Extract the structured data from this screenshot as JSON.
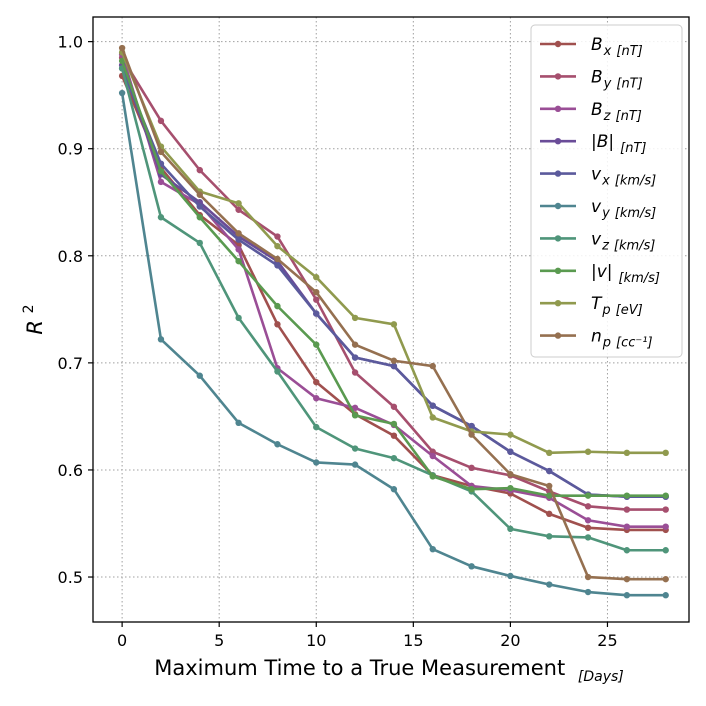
{
  "chart_data": {
    "type": "line",
    "title": "",
    "xlabel": "Maximum Time to a True Measurement",
    "xlabel_subscript": "[Days]",
    "ylabel": "R",
    "ylabel_superscript": "2",
    "xlim": [
      -1.5,
      29.2
    ],
    "ylim": [
      0.458,
      1.023
    ],
    "xticks": [
      0,
      5,
      10,
      15,
      20,
      25
    ],
    "yticks": [
      0.5,
      0.6,
      0.7,
      0.8,
      0.9,
      1.0
    ],
    "xtick_labels": [
      "0",
      "5",
      "10",
      "15",
      "20",
      "25"
    ],
    "ytick_labels": [
      "0.5",
      "0.6",
      "0.7",
      "0.8",
      "0.9",
      "1.0"
    ],
    "grid": true,
    "legend_position": "upper right",
    "x": [
      0,
      2,
      4,
      6,
      8,
      10,
      12,
      14,
      16,
      18,
      20,
      22,
      24,
      26,
      28
    ],
    "series": [
      {
        "name": "B_x [nT]",
        "main": "B",
        "sub_letter": "x",
        "unit": "[nT]",
        "color": "#a0504e",
        "values": [
          0.968,
          0.882,
          0.838,
          0.81,
          0.736,
          0.682,
          0.652,
          0.632,
          0.595,
          0.585,
          0.578,
          0.559,
          0.546,
          0.544,
          0.544
        ]
      },
      {
        "name": "B_y [nT]",
        "main": "B",
        "sub_letter": "y",
        "unit": "[nT]",
        "color": "#a64f6e",
        "values": [
          0.985,
          0.926,
          0.88,
          0.843,
          0.818,
          0.759,
          0.691,
          0.659,
          0.617,
          0.602,
          0.595,
          0.58,
          0.566,
          0.563,
          0.563
        ]
      },
      {
        "name": "B_z [nT]",
        "main": "B",
        "sub_letter": "z",
        "unit": "[nT]",
        "color": "#9a4e96",
        "values": [
          0.988,
          0.869,
          0.848,
          0.806,
          0.695,
          0.667,
          0.658,
          0.642,
          0.613,
          0.585,
          0.581,
          0.574,
          0.553,
          0.547,
          0.547
        ]
      },
      {
        "name": "|B| [nT]",
        "main": "|B|",
        "sub_letter": "",
        "unit": "[nT]",
        "color": "#6a4c98",
        "values": [
          0.978,
          0.876,
          0.85,
          0.818,
          0.795,
          0.746,
          0.705,
          0.697,
          0.66,
          0.641,
          0.617,
          0.599,
          0.577,
          0.575,
          0.575
        ]
      },
      {
        "name": "v_x [km/s]",
        "main": "v",
        "sub_letter": "x",
        "unit": "[km/s]",
        "color": "#5b5a9c",
        "values": [
          0.975,
          0.886,
          0.846,
          0.815,
          0.791,
          0.746,
          0.705,
          0.697,
          0.66,
          0.641,
          0.617,
          0.599,
          0.577,
          0.575,
          0.575
        ]
      },
      {
        "name": "v_y [km/s]",
        "main": "v",
        "sub_letter": "y",
        "unit": "[km/s]",
        "color": "#4f8590",
        "values": [
          0.952,
          0.722,
          0.688,
          0.644,
          0.624,
          0.607,
          0.605,
          0.582,
          0.526,
          0.51,
          0.501,
          0.493,
          0.486,
          0.483,
          0.483
        ]
      },
      {
        "name": "v_z [km/s]",
        "main": "v",
        "sub_letter": "z",
        "unit": "[km/s]",
        "color": "#4f957a",
        "values": [
          0.975,
          0.836,
          0.812,
          0.742,
          0.692,
          0.64,
          0.62,
          0.611,
          0.595,
          0.58,
          0.545,
          0.538,
          0.537,
          0.525,
          0.525
        ]
      },
      {
        "name": "|v| [km/s]",
        "main": "|v|",
        "sub_letter": "",
        "unit": "[km/s]",
        "color": "#5a9a50",
        "values": [
          0.982,
          0.879,
          0.836,
          0.795,
          0.753,
          0.717,
          0.651,
          0.643,
          0.594,
          0.582,
          0.583,
          0.576,
          0.576,
          0.576,
          0.576
        ]
      },
      {
        "name": "T_p [eV]",
        "main": "T",
        "sub_letter": "p",
        "unit": "[eV]",
        "color": "#909a4e",
        "values": [
          0.99,
          0.902,
          0.86,
          0.849,
          0.809,
          0.78,
          0.742,
          0.736,
          0.649,
          0.636,
          0.633,
          0.616,
          0.617,
          0.616,
          0.616
        ]
      },
      {
        "name": "n_p [cc^-1]",
        "main": "n",
        "sub_letter": "p",
        "unit": "[cc⁻¹]",
        "color": "#957050",
        "values": [
          0.994,
          0.897,
          0.857,
          0.821,
          0.797,
          0.766,
          0.717,
          0.702,
          0.697,
          0.633,
          0.596,
          0.585,
          0.5,
          0.498,
          0.498
        ]
      }
    ]
  }
}
